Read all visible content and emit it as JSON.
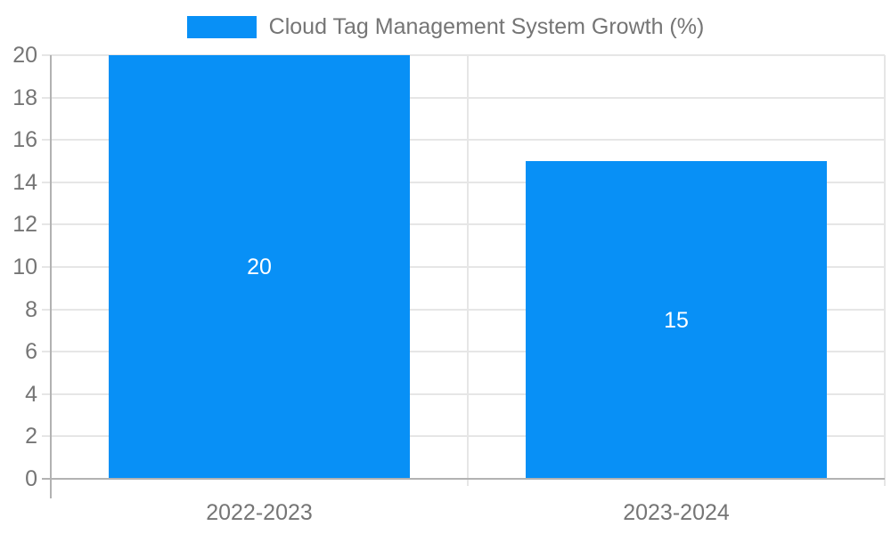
{
  "legend": {
    "label": "Cloud Tag Management System Growth (%)"
  },
  "chart_data": {
    "type": "bar",
    "title": "Cloud Tag Management System Growth (%)",
    "series": [
      {
        "name": "Cloud Tag Management System Growth (%)",
        "values": [
          20,
          15
        ]
      }
    ],
    "categories": [
      "2022-2023",
      "2023-2024"
    ],
    "values": [
      20,
      15
    ],
    "bar_value_labels": [
      "20",
      "15"
    ],
    "yticks": [
      0,
      2,
      4,
      6,
      8,
      10,
      12,
      14,
      16,
      18,
      20
    ],
    "ylim": [
      0,
      20
    ],
    "xlabel": "",
    "ylabel": "",
    "grid": true,
    "legend_position": "top-center",
    "colors": {
      "bar": "#0890f6",
      "axis_line": "#b2b2b2",
      "gridline": "#e6e6e6",
      "tick_label": "#757575",
      "bar_label": "#ffffff",
      "background": "#ffffff"
    }
  }
}
